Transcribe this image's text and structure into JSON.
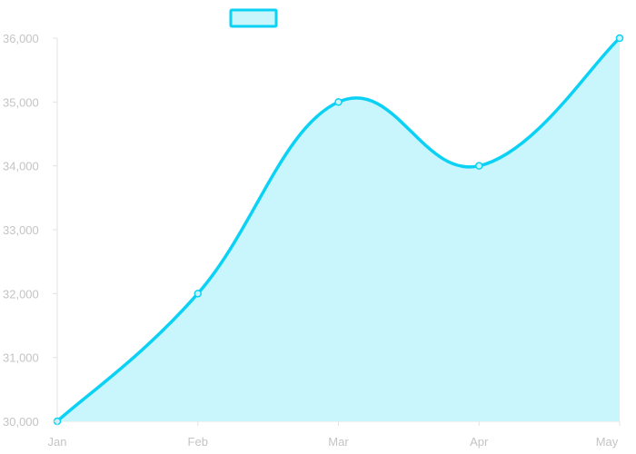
{
  "chart_data": {
    "type": "area",
    "categories": [
      "Jan",
      "Feb",
      "Mar",
      "Apr",
      "May"
    ],
    "series": [
      {
        "values": [
          30000,
          32000,
          35000,
          34000,
          36000
        ]
      }
    ],
    "ylim": [
      30000,
      36000
    ],
    "yticks": [
      30000,
      31000,
      32000,
      33000,
      34000,
      35000,
      36000
    ],
    "ytick_labels": [
      "30,000",
      "31,000",
      "32,000",
      "33,000",
      "34,000",
      "35,000",
      "36,000"
    ],
    "legend": {
      "position": "top",
      "has_text": false
    },
    "colors": {
      "line": "#0bd2f5",
      "fill": "#c9f5fd",
      "axis": "#e3e3e3",
      "tick_text": "#c4c4c4"
    },
    "grid": false,
    "smooth": true,
    "markers": true
  }
}
